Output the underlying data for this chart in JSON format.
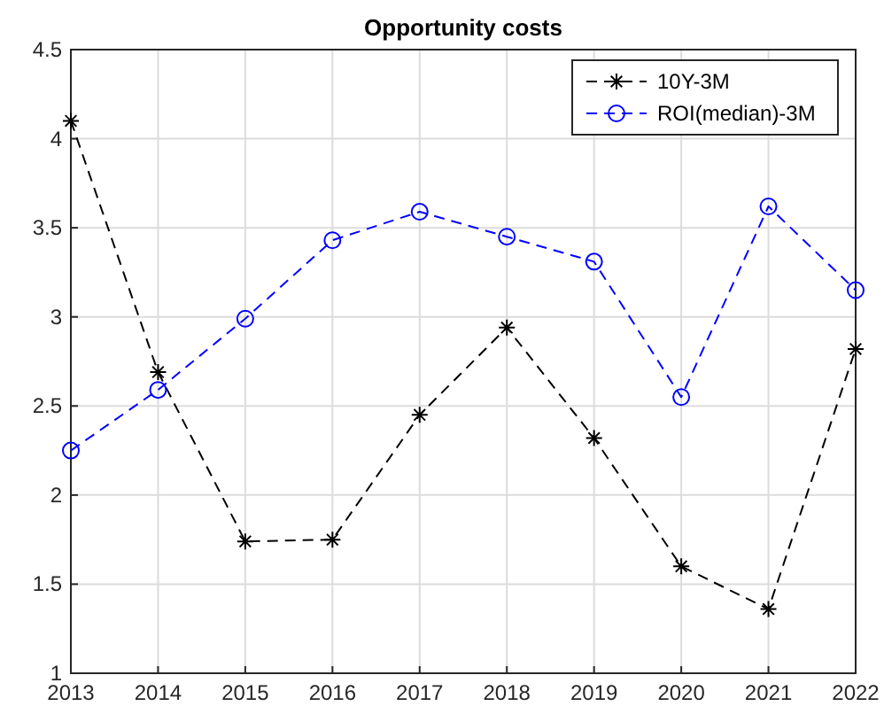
{
  "chart_data": {
    "type": "line",
    "title": "Opportunity costs",
    "x": [
      2013,
      2014,
      2015,
      2016,
      2017,
      2018,
      2019,
      2020,
      2021,
      2022
    ],
    "series": [
      {
        "name": "10Y-3M",
        "color": "#000000",
        "marker": "cross",
        "line_style": "dashed",
        "values": [
          4.1,
          2.69,
          1.74,
          1.75,
          2.45,
          2.94,
          2.32,
          1.6,
          1.36,
          2.82
        ]
      },
      {
        "name": "ROI(median)-3M",
        "color": "#0000ff",
        "marker": "circle",
        "line_style": "dashed",
        "values": [
          2.25,
          2.59,
          2.99,
          3.43,
          3.59,
          3.45,
          3.31,
          2.55,
          3.62,
          3.15
        ]
      }
    ],
    "xlim": [
      2013,
      2022
    ],
    "xticks": [
      2013,
      2014,
      2015,
      2016,
      2017,
      2018,
      2019,
      2020,
      2021,
      2022
    ],
    "ylim": [
      1,
      4.5
    ],
    "yticks": [
      1,
      1.5,
      2,
      2.5,
      3,
      3.5,
      4,
      4.5
    ],
    "grid": true,
    "legend": "top right"
  }
}
